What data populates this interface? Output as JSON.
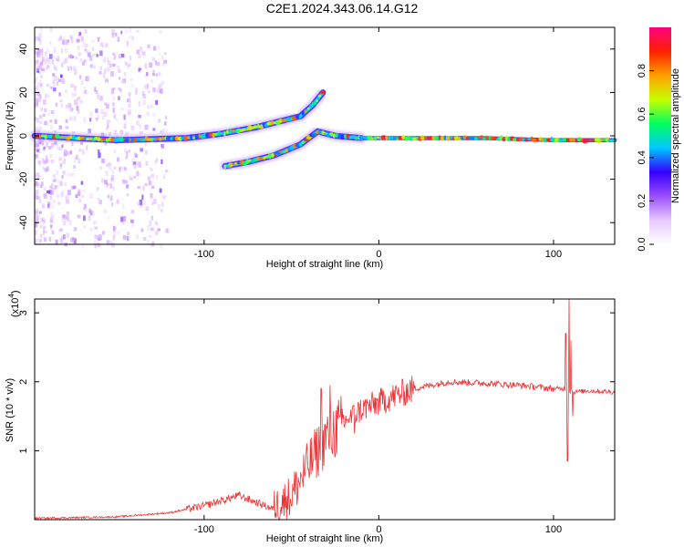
{
  "title": "C2E1.2024.343.06.14.G12",
  "chart_data": [
    {
      "type": "heatmap",
      "xlabel": "Height of straight line (km)",
      "ylabel": "Frequency (Hz)",
      "xlim": [
        -197,
        135
      ],
      "ylim": [
        -50,
        50
      ],
      "xticks": [
        -100,
        0,
        100
      ],
      "yticks": [
        -40,
        -20,
        0,
        20,
        40
      ],
      "colorbar": {
        "label": "Normalized spectral amplitude",
        "range": [
          0,
          1
        ],
        "ticks": [
          "0.0",
          "0.2",
          "0.4",
          "0.6",
          "0.8"
        ],
        "colors": [
          "#ffffff",
          "#e8c8ff",
          "#9a4dff",
          "#3300ff",
          "#00c8ff",
          "#00ff60",
          "#c8ff00",
          "#ffa000",
          "#ff2000",
          "#ff0080"
        ]
      },
      "tracks": [
        {
          "name": "main",
          "points": [
            [
              -197,
              0
            ],
            [
              -150,
              -2
            ],
            [
              -110,
              -1
            ],
            [
              -90,
              1
            ],
            [
              -70,
              4
            ],
            [
              -55,
              7
            ],
            [
              -45,
              9
            ]
          ],
          "width": 3
        },
        {
          "name": "upper_branch",
          "points": [
            [
              -45,
              9
            ],
            [
              -38,
              14
            ],
            [
              -32,
              20
            ]
          ],
          "width": 3
        },
        {
          "name": "lower_branch",
          "points": [
            [
              -88,
              -14
            ],
            [
              -75,
              -12
            ],
            [
              -60,
              -9
            ],
            [
              -45,
              -4
            ],
            [
              -35,
              2
            ],
            [
              -25,
              0
            ],
            [
              -10,
              -1
            ]
          ],
          "width": 3
        },
        {
          "name": "tail",
          "points": [
            [
              -10,
              -1
            ],
            [
              0,
              -1
            ],
            [
              20,
              -1
            ],
            [
              60,
              -1
            ],
            [
              100,
              -2
            ],
            [
              135,
              -2
            ]
          ],
          "width": 2
        }
      ]
    },
    {
      "type": "line",
      "xlabel": "Height of straight line (km)",
      "ylabel": "SNR (10 * v/v)",
      "y_multiplier": "(x10",
      "y_multiplier_exp": "4",
      "xlim": [
        -197,
        135
      ],
      "ylim": [
        0,
        3.2
      ],
      "xticks": [
        -100,
        0,
        100
      ],
      "yticks": [
        1,
        2,
        3
      ],
      "series": [
        {
          "color": "#ee3333",
          "envelope": [
            [
              -197,
              0.02
            ],
            [
              -150,
              0.04
            ],
            [
              -120,
              0.1
            ],
            [
              -100,
              0.2
            ],
            [
              -80,
              0.35
            ],
            [
              -70,
              0.25
            ],
            [
              -60,
              0.15
            ],
            [
              -50,
              0.35
            ],
            [
              -40,
              0.8
            ],
            [
              -30,
              1.2
            ],
            [
              -20,
              1.4
            ],
            [
              -10,
              1.6
            ],
            [
              0,
              1.7
            ],
            [
              10,
              1.8
            ],
            [
              20,
              1.9
            ],
            [
              40,
              2.0
            ],
            [
              60,
              1.98
            ],
            [
              80,
              1.95
            ],
            [
              100,
              1.9
            ],
            [
              106,
              1.9
            ],
            [
              112,
              1.85
            ],
            [
              120,
              1.87
            ],
            [
              135,
              1.85
            ]
          ],
          "spikes": [
            [
              -33,
              1.9
            ],
            [
              -28,
              1.95
            ],
            [
              -22,
              1.5
            ],
            [
              -18,
              1.45
            ],
            [
              -14,
              1.25
            ],
            [
              107,
              2.7
            ],
            [
              108,
              0.85
            ],
            [
              109,
              3.2
            ],
            [
              110,
              2.6
            ],
            [
              111,
              1.5
            ]
          ]
        }
      ]
    }
  ]
}
